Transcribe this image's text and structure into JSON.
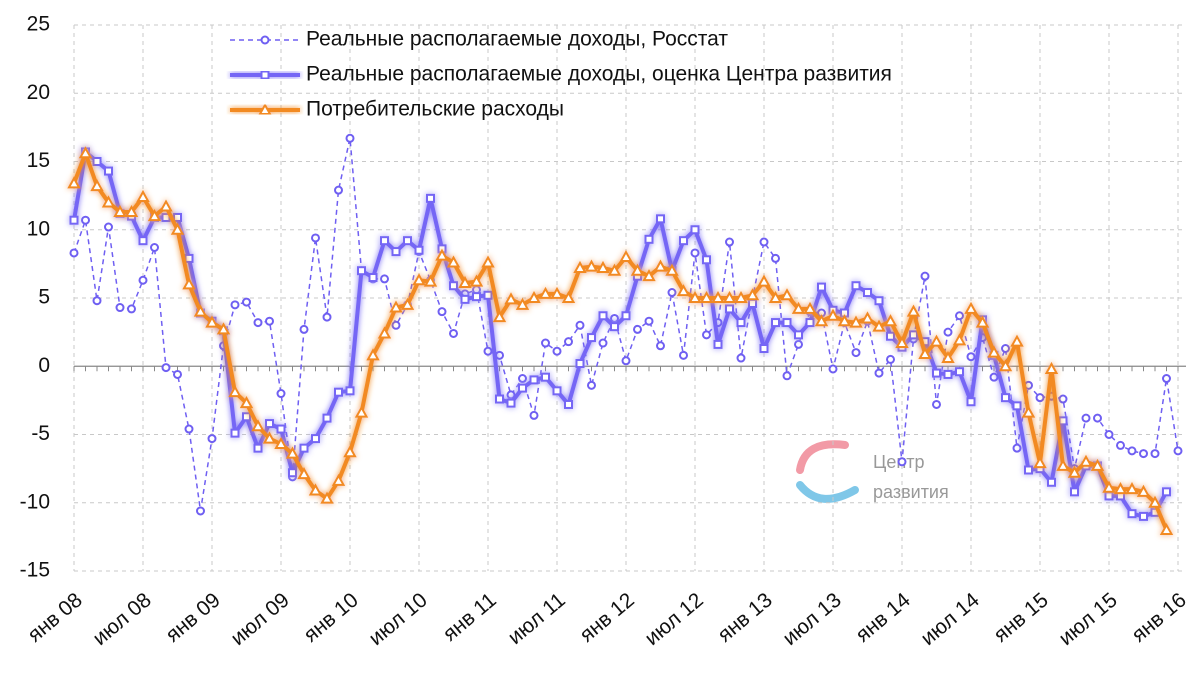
{
  "chart_data": {
    "type": "line",
    "categories": [
      "янв 08",
      null,
      null,
      null,
      null,
      null,
      "июл 08",
      null,
      null,
      null,
      null,
      null,
      "янв 09",
      null,
      null,
      null,
      null,
      null,
      "июл 09",
      null,
      null,
      null,
      null,
      null,
      "янв 10",
      null,
      null,
      null,
      null,
      null,
      "июл 10",
      null,
      null,
      null,
      null,
      null,
      "янв 11",
      null,
      null,
      null,
      null,
      null,
      "июл 11",
      null,
      null,
      null,
      null,
      null,
      "янв 12",
      null,
      null,
      null,
      null,
      null,
      "июл 12",
      null,
      null,
      null,
      null,
      null,
      "янв 13",
      null,
      null,
      null,
      null,
      null,
      "июл 13",
      null,
      null,
      null,
      null,
      null,
      "янв 14",
      null,
      null,
      null,
      null,
      null,
      "июл 14",
      null,
      null,
      null,
      null,
      null,
      "янв 15",
      null,
      null,
      null,
      null,
      null,
      "июл 15",
      null,
      null,
      null,
      null,
      null,
      "янв 16"
    ],
    "series": [
      {
        "name": "Реальные располагаемые доходы, Росстат",
        "color": "#6f5ff2",
        "style": "dashed",
        "marker": "circle",
        "values": [
          8.3,
          10.7,
          4.8,
          10.2,
          4.3,
          4.2,
          6.3,
          8.7,
          -0.1,
          -0.6,
          -4.6,
          -10.6,
          -5.3,
          1.5,
          4.5,
          4.7,
          3.2,
          3.3,
          -2,
          -8.1,
          2.7,
          9.4,
          3.6,
          12.9,
          16.7,
          7,
          6.4,
          6.4,
          3,
          4.5,
          8.4,
          6.3,
          4,
          2.4,
          5.3,
          5.6,
          1.1,
          0.8,
          -2.1,
          -0.9,
          -3.6,
          1.7,
          1.1,
          1.8,
          3,
          -1.4,
          1.7,
          3.5,
          0.4,
          2.7,
          3.3,
          1.5,
          5.4,
          0.8,
          8.3,
          2.3,
          3.2,
          9.1,
          0.6,
          5,
          9.1,
          7.9,
          -0.7,
          1.6,
          4,
          3.9,
          -0.2,
          3.2,
          1,
          3.3,
          -0.5,
          0.5,
          -7,
          2,
          6.6,
          -2.8,
          2.5,
          3.7,
          0.7,
          2.1,
          -0.8,
          1.3,
          -6,
          -1.4,
          -2.3,
          -2.2,
          -2.4,
          -7.5,
          -3.8,
          -3.8,
          -5,
          -5.8,
          -6.2,
          -6.4,
          -6.4,
          -0.9,
          -6.2
        ]
      },
      {
        "name": "Реальные располагаемые доходы, оценка Центра развития",
        "color": "#7566f5",
        "style": "thick",
        "marker": "square",
        "values": [
          10.7,
          15.7,
          15,
          14.3,
          11.2,
          11,
          9.2,
          10.9,
          10.9,
          10.9,
          7.9,
          3.9,
          3.3,
          2.6,
          -4.9,
          -3.7,
          -6,
          -4.2,
          -4.6,
          -7.8,
          -6,
          -5.3,
          -3.8,
          -1.9,
          -1.8,
          7,
          6.5,
          9.2,
          8.4,
          9.2,
          8.5,
          12.3,
          8.6,
          5.9,
          4.9,
          5.1,
          5.2,
          -2.4,
          -2.7,
          -1.6,
          -1,
          -0.8,
          -1.8,
          -2.8,
          0.2,
          2.1,
          3.7,
          2.9,
          3.7,
          6.6,
          9.3,
          10.8,
          7,
          9.2,
          10,
          7.8,
          1.6,
          4.2,
          3.2,
          4.6,
          1.3,
          3.2,
          3.2,
          2.3,
          3.2,
          5.8,
          4.1,
          3.9,
          5.9,
          5.4,
          4.8,
          2.2,
          1.4,
          2.3,
          1.8,
          -0.5,
          -0.6,
          -0.4,
          -2.6,
          3.4,
          0.8,
          -2.3,
          -2.9,
          -7.6,
          -7.5,
          -8.5,
          -4,
          -9.2,
          -7.3,
          -7.3,
          -9.5,
          -9.5,
          -10.8,
          -11,
          -10.7,
          -9.2,
          null
        ]
      },
      {
        "name": "Потребительские расходы",
        "color": "#f28a22",
        "style": "thick",
        "marker": "triangle",
        "values": [
          13.4,
          15.6,
          13.2,
          12,
          11.3,
          11.3,
          12.4,
          11,
          11.7,
          10,
          6,
          4,
          3.2,
          2.7,
          -1.9,
          -2.7,
          -4.4,
          -5.3,
          -5.7,
          -6.4,
          -7.9,
          -9.1,
          -9.7,
          -8.4,
          -6.3,
          -3.4,
          0.8,
          2.4,
          4.3,
          4.5,
          6.3,
          6.2,
          8.1,
          7.6,
          6.1,
          6.2,
          7.6,
          3.6,
          4.9,
          4.5,
          5,
          5.3,
          5.3,
          5,
          7.2,
          7.3,
          7.2,
          7,
          8,
          7,
          6.6,
          7.3,
          7,
          5.5,
          5,
          5,
          5,
          5,
          5,
          5.2,
          6.2,
          5,
          5.2,
          4.2,
          4.2,
          3.3,
          3.7,
          3.3,
          3.2,
          3.5,
          2.9,
          3.3,
          1.7,
          4,
          0.9,
          1.8,
          0.6,
          1.9,
          4.2,
          3.2,
          1,
          0,
          1.8,
          -3.4,
          -7.1,
          -0.2,
          -7.3,
          -7.8,
          -7,
          -7.3,
          -8.9,
          -9,
          -9,
          -9.2,
          -10,
          -12,
          null
        ]
      }
    ],
    "ylim": [
      -15,
      25
    ],
    "yticks": [
      -15,
      -10,
      -5,
      0,
      5,
      10,
      15,
      20,
      25
    ],
    "grid": true,
    "watermark": [
      "Центр",
      "развития"
    ]
  }
}
